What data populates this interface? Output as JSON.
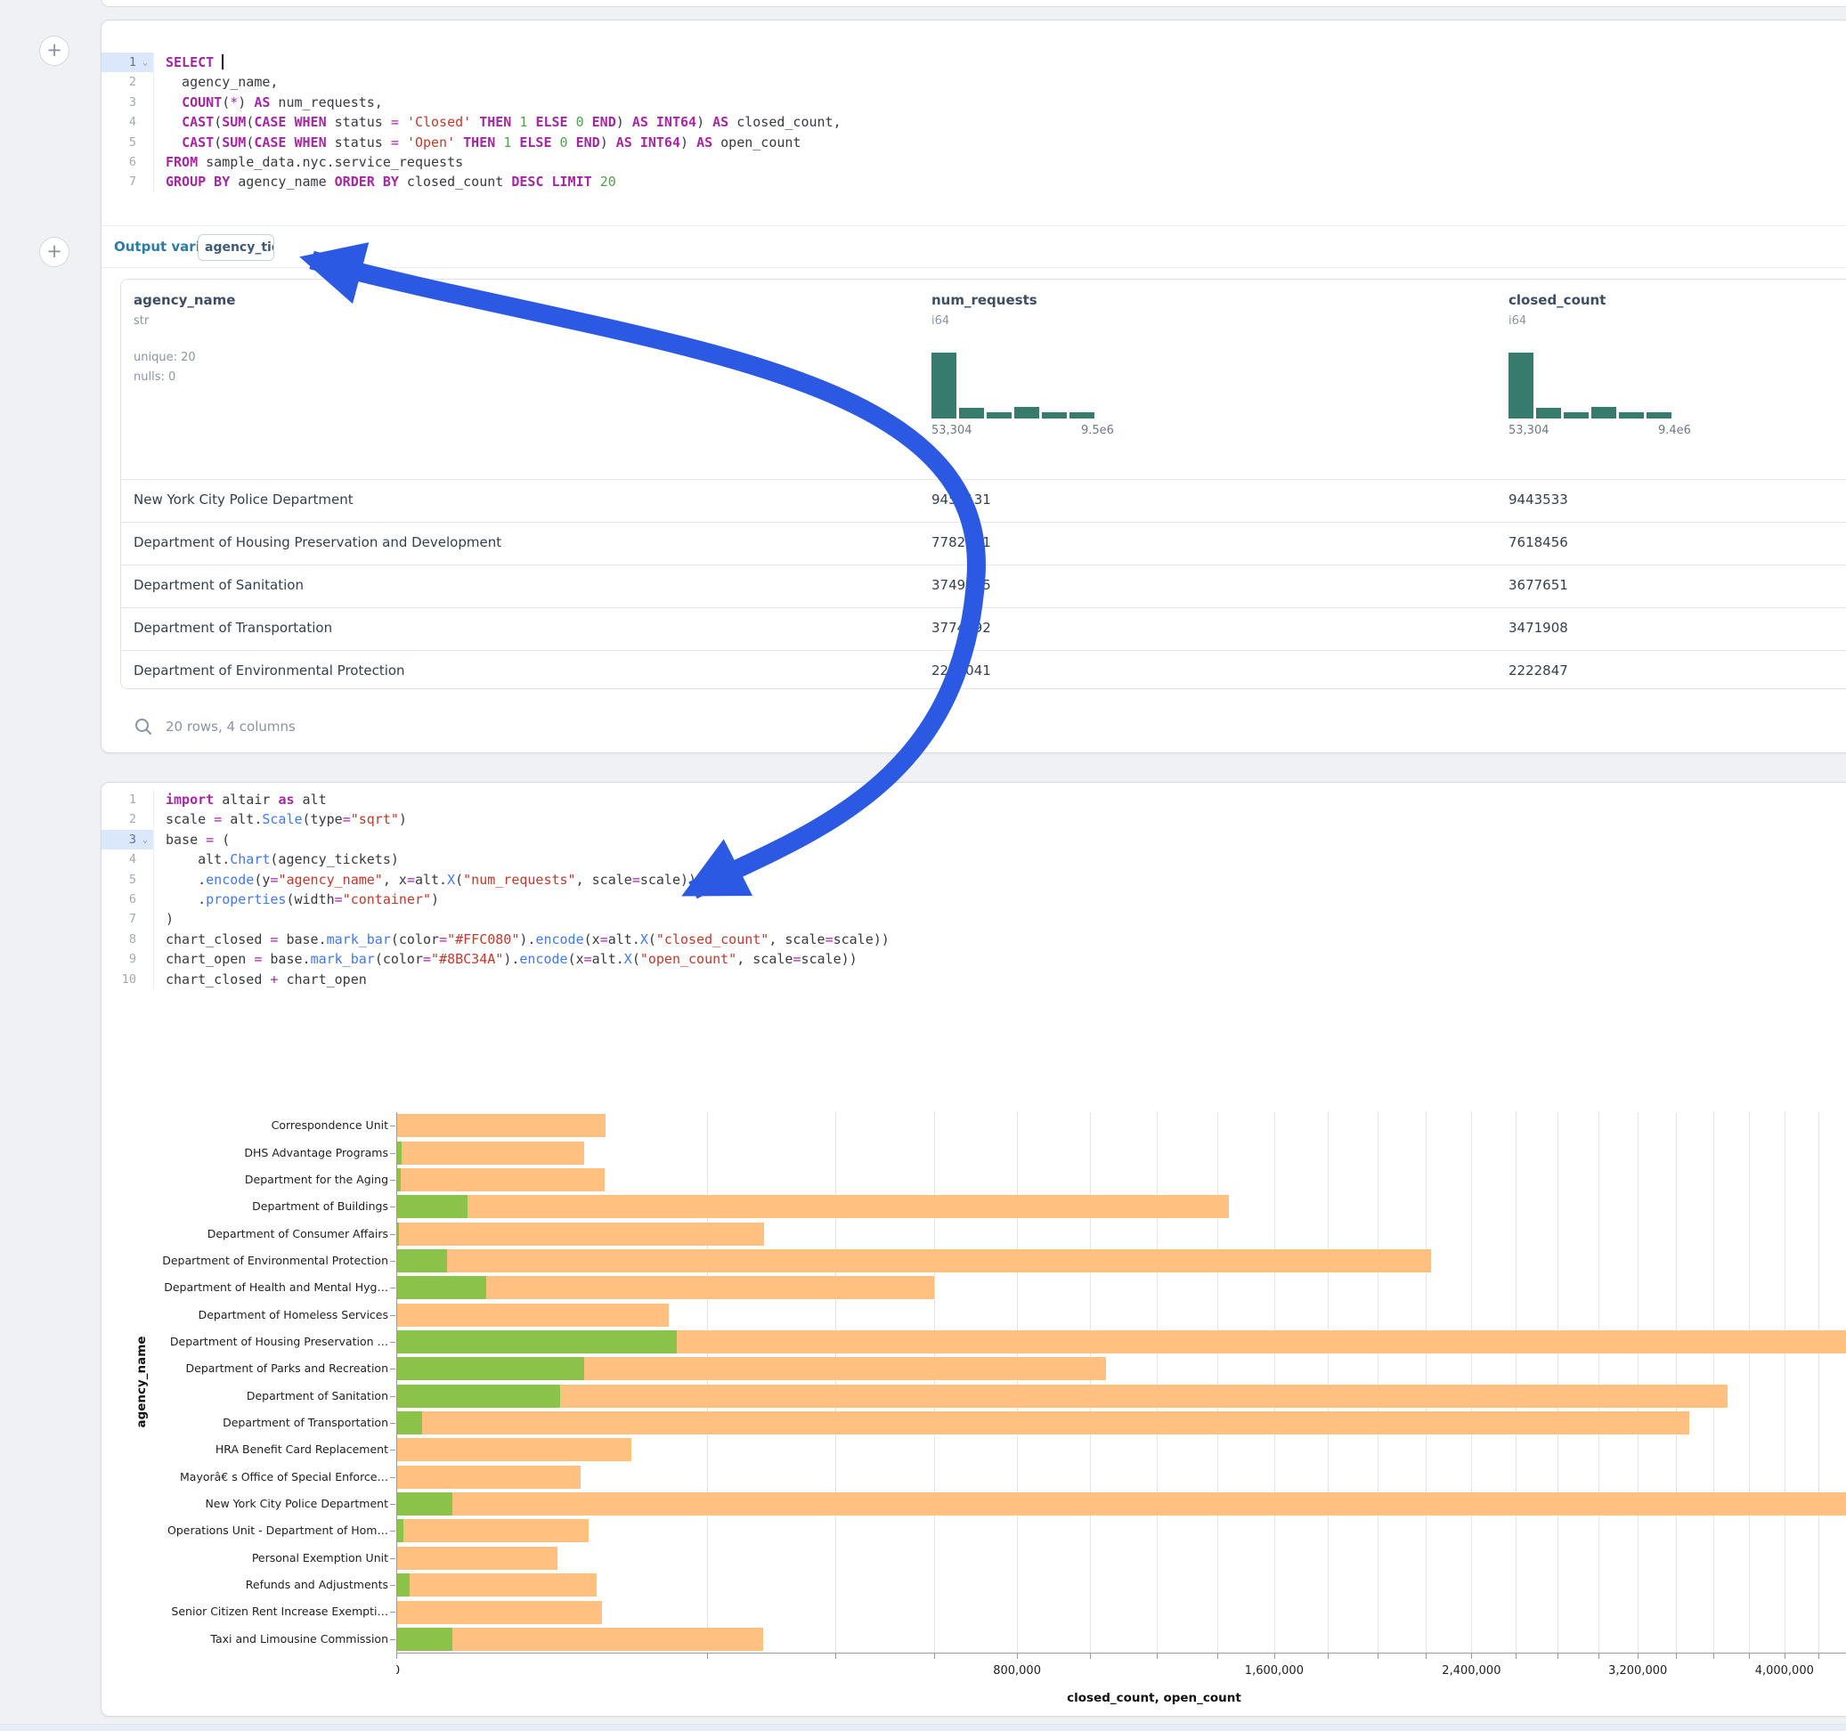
{
  "accent": {
    "arrow_blue": "#2c59e2",
    "hist_teal": "#377b6c",
    "active_gutter": "#dbe8fb"
  },
  "sql_cell": {
    "active_line": 1,
    "code": [
      [
        [
          "kw",
          "SELECT"
        ],
        [
          "cursor",
          ""
        ]
      ],
      [
        [
          "pl",
          "  agency_name,"
        ]
      ],
      [
        [
          "pl",
          "  "
        ],
        [
          "kw",
          "COUNT"
        ],
        [
          "pl",
          "("
        ],
        [
          "op",
          "*"
        ],
        [
          "pl",
          ") "
        ],
        [
          "kw",
          "AS"
        ],
        [
          "pl",
          " num_requests,"
        ]
      ],
      [
        [
          "pl",
          "  "
        ],
        [
          "kw",
          "CAST"
        ],
        [
          "pl",
          "("
        ],
        [
          "kw",
          "SUM"
        ],
        [
          "pl",
          "("
        ],
        [
          "kw",
          "CASE WHEN"
        ],
        [
          "pl",
          " status "
        ],
        [
          "op",
          "="
        ],
        [
          "pl",
          " "
        ],
        [
          "str",
          "'Closed'"
        ],
        [
          "pl",
          " "
        ],
        [
          "kw",
          "THEN"
        ],
        [
          "pl",
          " "
        ],
        [
          "num",
          "1"
        ],
        [
          "pl",
          " "
        ],
        [
          "kw",
          "ELSE"
        ],
        [
          "pl",
          " "
        ],
        [
          "num",
          "0"
        ],
        [
          "pl",
          " "
        ],
        [
          "kw",
          "END"
        ],
        [
          "pl",
          ") "
        ],
        [
          "kw",
          "AS"
        ],
        [
          "pl",
          " "
        ],
        [
          "kw",
          "INT64"
        ],
        [
          "pl",
          ") "
        ],
        [
          "kw",
          "AS"
        ],
        [
          "pl",
          " closed_count,"
        ]
      ],
      [
        [
          "pl",
          "  "
        ],
        [
          "kw",
          "CAST"
        ],
        [
          "pl",
          "("
        ],
        [
          "kw",
          "SUM"
        ],
        [
          "pl",
          "("
        ],
        [
          "kw",
          "CASE WHEN"
        ],
        [
          "pl",
          " status "
        ],
        [
          "op",
          "="
        ],
        [
          "pl",
          " "
        ],
        [
          "str",
          "'Open'"
        ],
        [
          "pl",
          " "
        ],
        [
          "kw",
          "THEN"
        ],
        [
          "pl",
          " "
        ],
        [
          "num",
          "1"
        ],
        [
          "pl",
          " "
        ],
        [
          "kw",
          "ELSE"
        ],
        [
          "pl",
          " "
        ],
        [
          "num",
          "0"
        ],
        [
          "pl",
          " "
        ],
        [
          "kw",
          "END"
        ],
        [
          "pl",
          ") "
        ],
        [
          "kw",
          "AS"
        ],
        [
          "pl",
          " "
        ],
        [
          "kw",
          "INT64"
        ],
        [
          "pl",
          ") "
        ],
        [
          "kw",
          "AS"
        ],
        [
          "pl",
          " open_count"
        ]
      ],
      [
        [
          "kw",
          "FROM"
        ],
        [
          "pl",
          " sample_data.nyc.service_requests"
        ]
      ],
      [
        [
          "kw",
          "GROUP BY"
        ],
        [
          "pl",
          " agency_name "
        ],
        [
          "kw",
          "ORDER BY"
        ],
        [
          "pl",
          " closed_count "
        ],
        [
          "kw",
          "DESC"
        ],
        [
          "pl",
          " "
        ],
        [
          "kw",
          "LIMIT"
        ],
        [
          "pl",
          " "
        ],
        [
          "num",
          "20"
        ]
      ]
    ],
    "output_variable_label": "Output variable:",
    "output_variable_value": "agency_tickets",
    "table": {
      "columns": [
        {
          "name": "agency_name",
          "type": "str",
          "stats": [
            "unique: 20",
            "nulls: 0"
          ]
        },
        {
          "name": "num_requests",
          "type": "i64",
          "hist": [
            100,
            16,
            9,
            17,
            9,
            9
          ],
          "hist_min": "53,304",
          "hist_max": "9.5e6"
        },
        {
          "name": "closed_count",
          "type": "i64",
          "hist": [
            100,
            16,
            9,
            17,
            9,
            9
          ],
          "hist_min": "53,304",
          "hist_max": "9.4e6"
        }
      ],
      "rows": [
        [
          "New York City Police Department",
          "9453131",
          "9443533"
        ],
        [
          "Department of Housing Preservation and Development",
          "7782211",
          "7618456"
        ],
        [
          "Department of Sanitation",
          "3749485",
          "3677651"
        ],
        [
          "Department of Transportation",
          "3774892",
          "3471908"
        ],
        [
          "Department of Environmental Protection",
          "2240041",
          "2222847"
        ]
      ],
      "footer": "20 rows, 4 columns"
    }
  },
  "python_cell": {
    "active_line": 3,
    "code": [
      [
        [
          "kw",
          "import"
        ],
        [
          "pl",
          " altair "
        ],
        [
          "kw",
          "as"
        ],
        [
          "pl",
          " alt"
        ]
      ],
      [
        [
          "pl",
          "scale "
        ],
        [
          "op",
          "="
        ],
        [
          "pl",
          " alt."
        ],
        [
          "fn",
          "Scale"
        ],
        [
          "pl",
          "(type"
        ],
        [
          "op",
          "="
        ],
        [
          "str",
          "\"sqrt\""
        ],
        [
          "pl",
          ")"
        ]
      ],
      [
        [
          "pl",
          "base "
        ],
        [
          "op",
          "="
        ],
        [
          "pl",
          " ("
        ]
      ],
      [
        [
          "pl",
          "    alt."
        ],
        [
          "fn",
          "Chart"
        ],
        [
          "pl",
          "(agency_tickets)"
        ]
      ],
      [
        [
          "pl",
          "    ."
        ],
        [
          "fn",
          "encode"
        ],
        [
          "pl",
          "(y"
        ],
        [
          "op",
          "="
        ],
        [
          "str",
          "\"agency_name\""
        ],
        [
          "pl",
          ", x"
        ],
        [
          "op",
          "="
        ],
        [
          "pl",
          "alt."
        ],
        [
          "fn",
          "X"
        ],
        [
          "pl",
          "("
        ],
        [
          "str",
          "\"num_requests\""
        ],
        [
          "pl",
          ", scale"
        ],
        [
          "op",
          "="
        ],
        [
          "pl",
          "scale))"
        ]
      ],
      [
        [
          "pl",
          "    ."
        ],
        [
          "fn",
          "properties"
        ],
        [
          "pl",
          "(width"
        ],
        [
          "op",
          "="
        ],
        [
          "str",
          "\"container\""
        ],
        [
          "pl",
          ")"
        ]
      ],
      [
        [
          "pl",
          ")"
        ]
      ],
      [
        [
          "pl",
          "chart_closed "
        ],
        [
          "op",
          "="
        ],
        [
          "pl",
          " base."
        ],
        [
          "fn",
          "mark_bar"
        ],
        [
          "pl",
          "(color"
        ],
        [
          "op",
          "="
        ],
        [
          "str",
          "\"#FFC080\""
        ],
        [
          "pl",
          ")."
        ],
        [
          "fn",
          "encode"
        ],
        [
          "pl",
          "(x"
        ],
        [
          "op",
          "="
        ],
        [
          "pl",
          "alt."
        ],
        [
          "fn",
          "X"
        ],
        [
          "pl",
          "("
        ],
        [
          "str",
          "\"closed_count\""
        ],
        [
          "pl",
          ", scale"
        ],
        [
          "op",
          "="
        ],
        [
          "pl",
          "scale))"
        ]
      ],
      [
        [
          "pl",
          "chart_open "
        ],
        [
          "op",
          "="
        ],
        [
          "pl",
          " base."
        ],
        [
          "fn",
          "mark_bar"
        ],
        [
          "pl",
          "(color"
        ],
        [
          "op",
          "="
        ],
        [
          "str",
          "\"#8BC34A\""
        ],
        [
          "pl",
          ")."
        ],
        [
          "fn",
          "encode"
        ],
        [
          "pl",
          "(x"
        ],
        [
          "op",
          "="
        ],
        [
          "pl",
          "alt."
        ],
        [
          "fn",
          "X"
        ],
        [
          "pl",
          "("
        ],
        [
          "str",
          "\"open_count\""
        ],
        [
          "pl",
          ", scale"
        ],
        [
          "op",
          "="
        ],
        [
          "pl",
          "scale))"
        ]
      ],
      [
        [
          "pl",
          "chart_closed "
        ],
        [
          "op",
          "+"
        ],
        [
          "pl",
          " chart_open"
        ]
      ]
    ]
  },
  "chart_data": {
    "type": "bar",
    "orientation": "horizontal",
    "x_scale": "sqrt",
    "title": "",
    "xlabel": "closed_count, open_count",
    "ylabel": "agency_name",
    "grid": true,
    "grid_step": 200000,
    "x_ticks": [
      {
        "value": 0,
        "label": "0"
      },
      {
        "value": 800000,
        "label": "800,000"
      },
      {
        "value": 1600000,
        "label": "1,600,000"
      },
      {
        "value": 2400000,
        "label": "2,400,000"
      },
      {
        "value": 3200000,
        "label": "3,200,000"
      },
      {
        "value": 4000000,
        "label": "4,000,000"
      }
    ],
    "categories": [
      "Correspondence Unit",
      "DHS Advantage Programs",
      "Department for the Aging",
      "Department of Buildings",
      "Department of Consumer Affairs",
      "Department of Environmental Protection",
      "Department of Health and Mental Hyg…",
      "Department of Homeless Services",
      "Department of Housing Preservation …",
      "Department of Parks and Recreation",
      "Department of Sanitation",
      "Department of Transportation",
      "HRA Benefit Card Replacement",
      "Mayorâ€ s Office of Special Enforce…",
      "New York City Police Department",
      "Operations Unit - Department of Hom…",
      "Personal Exemption Unit",
      "Refunds and Adjustments",
      "Senior Citizen Rent Increase Exempti…",
      "Taxi and Limousine Commission"
    ],
    "series": [
      {
        "name": "closed_count",
        "color": "#FFC080",
        "values": [
          91000,
          73000,
          90000,
          1440000,
          281000,
          2222847,
          600000,
          154000,
          7618456,
          1045000,
          3677651,
          3471908,
          115000,
          70700,
          9443533,
          76800,
          53700,
          83500,
          88100,
          278900
        ]
      },
      {
        "name": "open_count",
        "color": "#8BC34A",
        "values": [
          0,
          60,
          40,
          10500,
          15,
          5300,
          16800,
          0,
          163755,
          73000,
          56000,
          1400,
          0,
          0,
          6600,
          110,
          0,
          355,
          0,
          6600
        ]
      }
    ]
  }
}
